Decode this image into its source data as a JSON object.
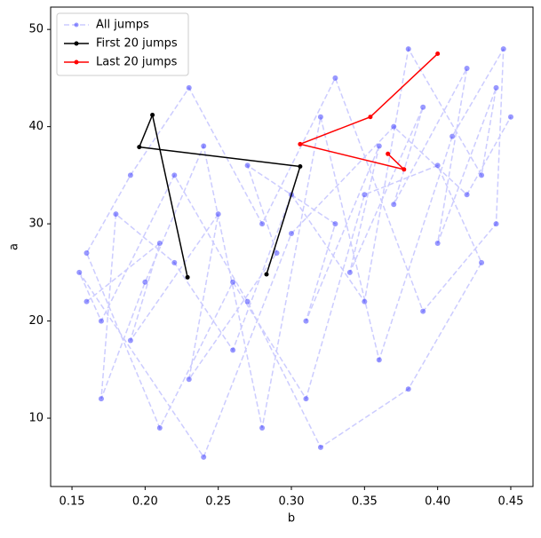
{
  "chart_data": {
    "type": "line",
    "xlabel": "b",
    "ylabel": "a",
    "xlim": [
      0.1354,
      0.4652
    ],
    "ylim": [
      2.97,
      52.3
    ],
    "xticks": [
      0.15,
      {
        "value": 0.2,
        "label": "0.20"
      },
      0.25,
      {
        "value": 0.3,
        "label": "0.30"
      },
      0.35,
      {
        "value": 0.4,
        "label": "0.40"
      },
      0.45
    ],
    "yticks": [
      10,
      20,
      30,
      40,
      50
    ],
    "legend": "upper left",
    "series": [
      {
        "name": "All jumps",
        "color": "#0000ff",
        "line_color": "#ccccff",
        "dashed": true,
        "alpha": 0.4,
        "x": [
          0.16,
          0.21,
          0.19,
          0.25,
          0.23,
          0.29,
          0.27,
          0.33,
          0.31,
          0.36,
          0.34,
          0.39,
          0.37,
          0.42,
          0.4,
          0.44,
          0.43,
          0.38,
          0.35,
          0.3,
          0.26,
          0.22,
          0.18,
          0.17,
          0.2,
          0.24,
          0.28,
          0.32,
          0.36,
          0.41,
          0.445,
          0.44,
          0.39,
          0.33,
          0.28,
          0.23,
          0.19,
          0.16,
          0.21,
          0.26,
          0.31,
          0.35,
          0.4,
          0.43,
          0.38,
          0.32,
          0.27,
          0.22,
          0.17,
          0.155,
          0.24,
          0.3,
          0.37,
          0.42,
          0.45
        ],
        "values": [
          22,
          28,
          18,
          31,
          14,
          27,
          36,
          30,
          20,
          38,
          25,
          42,
          32,
          46,
          28,
          44,
          35,
          48,
          22,
          33,
          17,
          26,
          31,
          12,
          24,
          38,
          9,
          41,
          16,
          39,
          48,
          30,
          21,
          45,
          30,
          44,
          35,
          27,
          9,
          24,
          12,
          33,
          36,
          26,
          13,
          7,
          22,
          35,
          20,
          25,
          6,
          29,
          40,
          33,
          41
        ]
      },
      {
        "name": "First 20 jumps",
        "color": "#000000",
        "dashed": false,
        "alpha": 1,
        "x": [
          0.283,
          0.306,
          0.196,
          0.205,
          0.229
        ],
        "values": [
          24.8,
          35.9,
          37.9,
          41.2,
          24.5
        ]
      },
      {
        "name": "Last 20 jumps",
        "color": "#ff0000",
        "dashed": false,
        "alpha": 1,
        "x": [
          0.366,
          0.377,
          0.306,
          0.354,
          0.4
        ],
        "values": [
          37.2,
          35.6,
          38.2,
          41.0,
          47.5
        ]
      }
    ]
  }
}
